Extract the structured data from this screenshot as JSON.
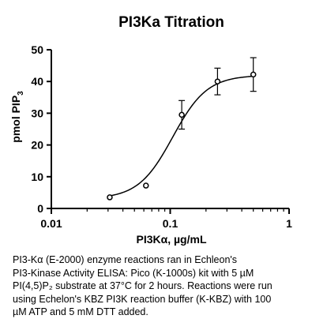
{
  "chart_data": {
    "type": "scatter",
    "title": "PI3Ka Titration",
    "xlabel": "PI3Kα, µg/mL",
    "ylabel": "pmol PIP",
    "ylabel_subscript": "3",
    "x_scale": "log",
    "xlim": [
      0.01,
      1
    ],
    "ylim": [
      0,
      50
    ],
    "x_ticks": [
      0.01,
      0.1,
      1
    ],
    "x_tick_labels": [
      "0.01",
      "0.1",
      "1"
    ],
    "y_ticks": [
      0,
      10,
      20,
      30,
      40,
      50
    ],
    "y_tick_labels": [
      "0",
      "10",
      "20",
      "30",
      "40",
      "50"
    ],
    "grid": false,
    "legend": "none",
    "series": [
      {
        "x": [
          0.031,
          0.0625,
          0.125,
          0.25,
          0.5
        ],
        "y": [
          3.5,
          7.2,
          29.5,
          40.0,
          42.2
        ],
        "error": [
          0.4,
          0.6,
          4.5,
          4.2,
          5.3
        ]
      }
    ],
    "fit": {
      "bottom": 3.0,
      "top": 42.0,
      "ec50": 0.105,
      "hill": 3.0
    }
  },
  "caption": [
    "PI3-Kα (E-2000) enzyme reactions ran in Echleon's",
    "PI3-Kinase Activity ELISA: Pico (K-1000s) kit with 5 µM",
    "PI(4,5)P₂ substrate at 37°C for 2 hours. Reactions were run",
    "using Echelon's KBZ PI3K reaction buffer (K-KBZ) with 100",
    "µM ATP and 5 mM DTT added."
  ],
  "colors": {
    "marker_fill": "#ffffff",
    "marker_stroke": "#000000",
    "curve": "#000000",
    "axis": "#000000"
  }
}
